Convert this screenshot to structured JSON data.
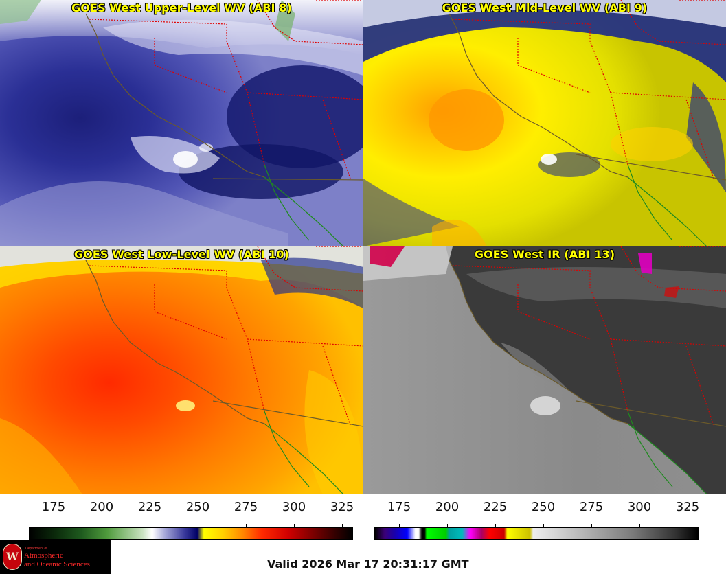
{
  "panels": [
    {
      "title": "GOES West Upper-Level WV (ABI 8)",
      "colormap": "wv"
    },
    {
      "title": "GOES West Mid-Level WV (ABI 9)",
      "colormap": "wv"
    },
    {
      "title": "GOES West Low-Level WV (ABI 10)",
      "colormap": "wv"
    },
    {
      "title": "GOES West IR (ABI 13)",
      "colormap": "ir"
    }
  ],
  "colorbar_left": {
    "ticks": [
      "175",
      "200",
      "225",
      "250",
      "275",
      "300",
      "325"
    ]
  },
  "colorbar_right": {
    "ticks": [
      "175",
      "200",
      "225",
      "250",
      "275",
      "300",
      "325"
    ]
  },
  "logo": {
    "seal_letter": "W",
    "dept_line": "Department of",
    "line1": "Atmospheric",
    "line2": "and Oceanic Sciences"
  },
  "valid_time": "Valid 2026 Mar 17 20:31:17 GMT",
  "colors": {
    "title_text": "#ffff00",
    "state_borders": "#e00000",
    "coastline": "#6b5a2a",
    "mexico_coast": "#1f8a1f"
  }
}
